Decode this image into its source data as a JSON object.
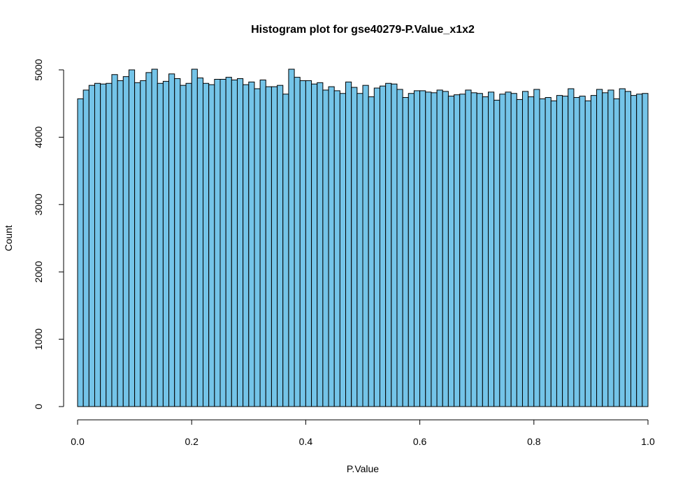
{
  "chart_data": {
    "type": "bar",
    "title": "Histogram plot for gse40279-P.Value_x1x2",
    "xlabel": "P.Value",
    "ylabel": "Count",
    "xlim": [
      0,
      1
    ],
    "ylim": [
      0,
      5000
    ],
    "bin_width": 0.01,
    "bar_color": "#74C4E8",
    "grid": false,
    "x_ticks": [
      0,
      0.2,
      0.4,
      0.6,
      0.8,
      1
    ],
    "x_tick_labels": [
      "0.0",
      "0.2",
      "0.4",
      "0.6",
      "0.8",
      "1.0"
    ],
    "y_ticks": [
      0,
      1000,
      2000,
      3000,
      4000,
      5000
    ],
    "y_tick_labels": [
      "0",
      "1000",
      "2000",
      "3000",
      "4000",
      "5000"
    ],
    "bin_starts": [
      0.0,
      0.01,
      0.02,
      0.03,
      0.04,
      0.05,
      0.06,
      0.07,
      0.08,
      0.09,
      0.1,
      0.11,
      0.12,
      0.13,
      0.14,
      0.15,
      0.16,
      0.17,
      0.18,
      0.19,
      0.2,
      0.21,
      0.22,
      0.23,
      0.24,
      0.25,
      0.26,
      0.27,
      0.28,
      0.29,
      0.3,
      0.31,
      0.32,
      0.33,
      0.34,
      0.35,
      0.36,
      0.37,
      0.38,
      0.39,
      0.4,
      0.41,
      0.42,
      0.43,
      0.44,
      0.45,
      0.46,
      0.47,
      0.48,
      0.49,
      0.5,
      0.51,
      0.52,
      0.53,
      0.54,
      0.55,
      0.56,
      0.57,
      0.58,
      0.59,
      0.6,
      0.61,
      0.62,
      0.63,
      0.64,
      0.65,
      0.66,
      0.67,
      0.68,
      0.69,
      0.7,
      0.71,
      0.72,
      0.73,
      0.74,
      0.75,
      0.76,
      0.77,
      0.78,
      0.79,
      0.8,
      0.81,
      0.82,
      0.83,
      0.84,
      0.85,
      0.86,
      0.87,
      0.88,
      0.89,
      0.9,
      0.91,
      0.92,
      0.93,
      0.94,
      0.95,
      0.96,
      0.97,
      0.98,
      0.99
    ],
    "values": [
      4570,
      4700,
      4770,
      4800,
      4790,
      4800,
      4930,
      4840,
      4900,
      5000,
      4810,
      4840,
      4960,
      5010,
      4800,
      4830,
      4940,
      4870,
      4770,
      4800,
      5010,
      4880,
      4800,
      4780,
      4860,
      4860,
      4890,
      4850,
      4870,
      4780,
      4820,
      4720,
      4850,
      4750,
      4750,
      4770,
      4640,
      5010,
      4890,
      4840,
      4840,
      4790,
      4810,
      4700,
      4750,
      4690,
      4650,
      4820,
      4740,
      4650,
      4770,
      4600,
      4730,
      4760,
      4800,
      4790,
      4710,
      4590,
      4650,
      4690,
      4690,
      4670,
      4660,
      4700,
      4680,
      4610,
      4630,
      4640,
      4700,
      4660,
      4650,
      4600,
      4670,
      4550,
      4640,
      4670,
      4650,
      4560,
      4680,
      4600,
      4710,
      4570,
      4590,
      4540,
      4620,
      4610,
      4720,
      4590,
      4610,
      4540,
      4620,
      4710,
      4660,
      4700,
      4570,
      4720,
      4680,
      4620,
      4640,
      4650
    ]
  }
}
